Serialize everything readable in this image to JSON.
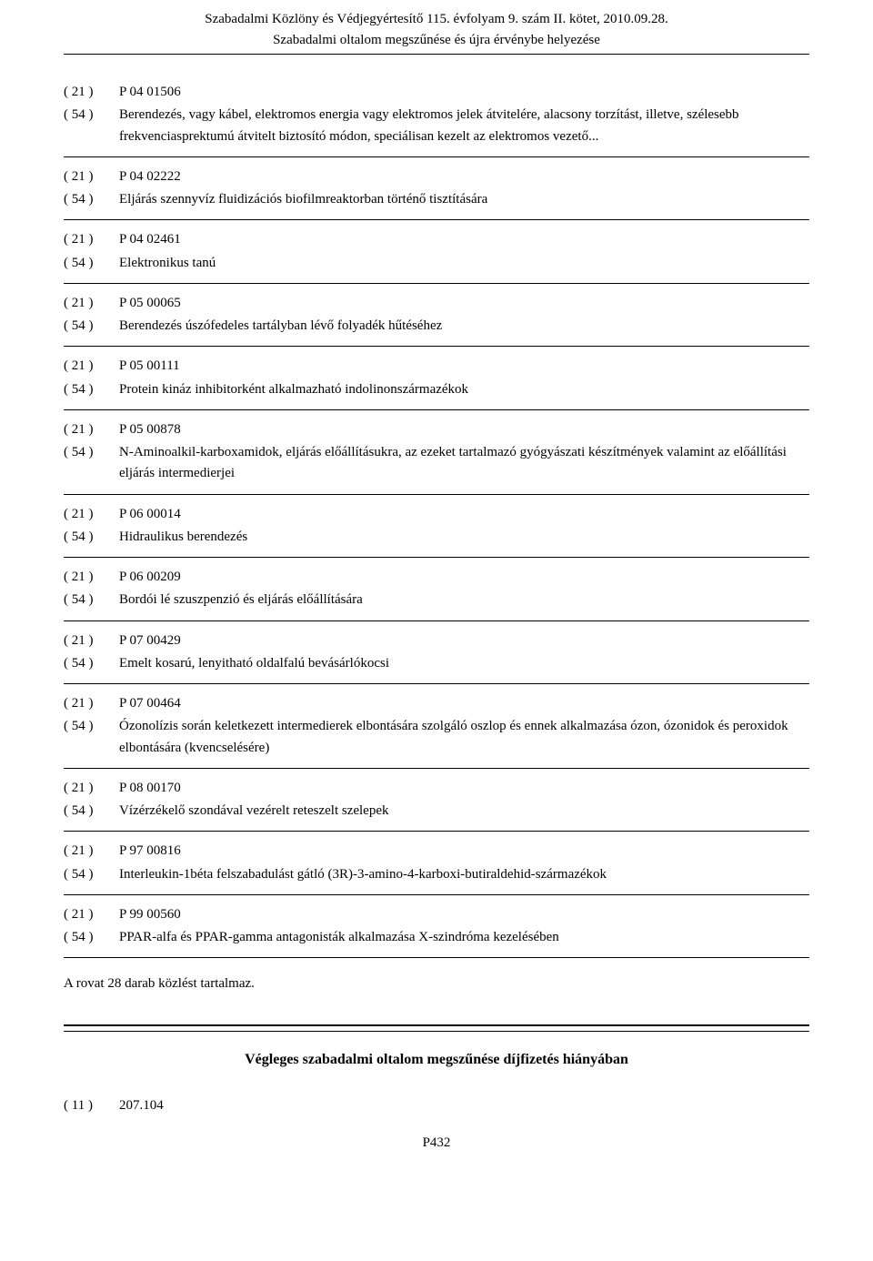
{
  "header": {
    "line1": "Szabadalmi Közlöny és Védjegyértesítő 115. évfolyam 9. szám II. kötet, 2010.09.28.",
    "line2": "Szabadalmi oltalom megszűnése és újra érvénybe helyezése"
  },
  "codes": {
    "c21": "( 21 )",
    "c54": "( 54 )",
    "c11": "( 11 )"
  },
  "entries": [
    {
      "id": "P 04 01506",
      "title": "Berendezés, vagy kábel, elektromos energia vagy elektromos jelek átvitelére, alacsony torzítást, illetve, szélesebb frekvenciasprektumú átvitelt biztosító módon, speciálisan kezelt az elektromos vezető..."
    },
    {
      "id": "P 04 02222",
      "title": "Eljárás szennyvíz fluidizációs biofilmreaktorban történő tisztítására"
    },
    {
      "id": "P 04 02461",
      "title": "Elektronikus tanú"
    },
    {
      "id": "P 05 00065",
      "title": "Berendezés úszófedeles tartályban lévő folyadék hűtéséhez"
    },
    {
      "id": "P 05 00111",
      "title": "Protein kináz inhibitorként alkalmazható indolinonszármazékok"
    },
    {
      "id": "P 05 00878",
      "title": "N-Aminoalkil-karboxamidok, eljárás előállításukra, az ezeket tartalmazó gyógyászati készítmények valamint az előállítási eljárás intermedierjei"
    },
    {
      "id": "P 06 00014",
      "title": "Hidraulikus berendezés"
    },
    {
      "id": "P 06 00209",
      "title": "Bordói lé szuszpenzió és eljárás előállítására"
    },
    {
      "id": "P 07 00429",
      "title": "Emelt kosarú, lenyitható oldalfalú bevásárlókocsi"
    },
    {
      "id": "P 07 00464",
      "title": "Ózonolízis során keletkezett intermedierek elbontására szolgáló oszlop és ennek alkalmazása ózon, ózonidok és peroxidok elbontására (kvencselésére)"
    },
    {
      "id": "P 08 00170",
      "title": "Vízérzékelő szondával vezérelt reteszelt szelepek"
    },
    {
      "id": "P 97 00816",
      "title": "Interleukin-1béta felszabadulást gátló (3R)-3-amino-4-karboxi-butiraldehid-származékok"
    },
    {
      "id": "P 99 00560",
      "title": "PPAR-alfa és PPAR-gamma antagonisták alkalmazása X-szindróma kezelésében"
    }
  ],
  "summary": "A rovat 28 darab közlést tartalmaz.",
  "section_title": "Végleges szabadalmi oltalom megszűnése díjfizetés hiányában",
  "bottom_entry": {
    "code_value": "207.104"
  },
  "footer": "P432"
}
